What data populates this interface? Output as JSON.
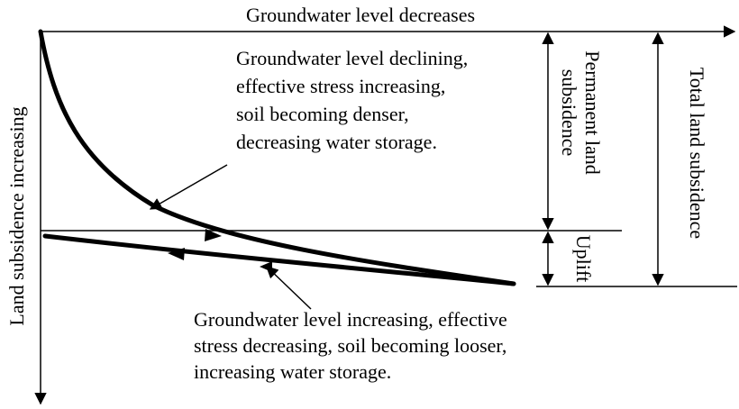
{
  "axes": {
    "x_label": "Groundwater level decreases",
    "y_label": "Land subsidence increasing"
  },
  "annotations": [
    {
      "lines": [
        "Groundwater level declining,",
        "effective stress increasing,",
        "soil becoming denser,",
        "decreasing water storage."
      ]
    },
    {
      "lines": [
        "Groundwater level increasing, effective",
        "stress decreasing, soil becoming looser,",
        "increasing water storage."
      ]
    }
  ],
  "dimensions": {
    "permanent": [
      "Permanent land",
      "subsidence"
    ],
    "uplift": "Uplift",
    "total": "Total land subsidence"
  }
}
